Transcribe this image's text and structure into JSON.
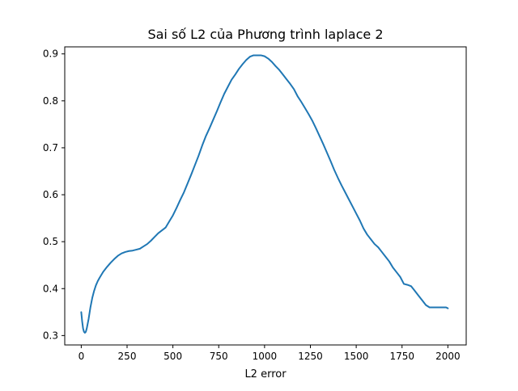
{
  "chart_data": {
    "type": "line",
    "title": "Sai số L2 của Phương trình laplace 2",
    "xlabel": "L2 error",
    "ylabel": "",
    "xlim": [
      -90,
      2100
    ],
    "ylim": [
      0.28,
      0.915
    ],
    "xticks": [
      0,
      250,
      500,
      750,
      1000,
      1250,
      1500,
      1750,
      2000
    ],
    "yticks": [
      0.3,
      0.4,
      0.5,
      0.6,
      0.7,
      0.8,
      0.9
    ],
    "xtick_labels": [
      "0",
      "250",
      "500",
      "750",
      "1000",
      "1250",
      "1500",
      "1750",
      "2000"
    ],
    "ytick_labels": [
      "0.3",
      "0.4",
      "0.5",
      "0.6",
      "0.7",
      "0.8",
      "0.9"
    ],
    "grid": false,
    "series": [
      {
        "color": "#1f77b4",
        "x": [
          0,
          5,
          10,
          15,
          20,
          25,
          30,
          40,
          50,
          60,
          70,
          80,
          90,
          100,
          120,
          140,
          160,
          180,
          200,
          220,
          240,
          260,
          280,
          300,
          320,
          340,
          360,
          380,
          400,
          420,
          440,
          460,
          480,
          500,
          520,
          540,
          560,
          580,
          600,
          620,
          640,
          660,
          680,
          700,
          720,
          740,
          760,
          780,
          800,
          820,
          840,
          860,
          880,
          900,
          920,
          940,
          960,
          980,
          1000,
          1020,
          1040,
          1060,
          1080,
          1100,
          1120,
          1140,
          1160,
          1180,
          1200,
          1220,
          1240,
          1260,
          1280,
          1300,
          1320,
          1340,
          1360,
          1380,
          1400,
          1420,
          1440,
          1460,
          1480,
          1500,
          1520,
          1540,
          1560,
          1580,
          1600,
          1620,
          1640,
          1660,
          1680,
          1700,
          1720,
          1740,
          1760,
          1780,
          1800,
          1820,
          1840,
          1860,
          1880,
          1900,
          1920,
          1940,
          1960,
          1980,
          1990,
          2000
        ],
        "y": [
          0.35,
          0.33,
          0.315,
          0.308,
          0.306,
          0.308,
          0.315,
          0.335,
          0.36,
          0.38,
          0.395,
          0.407,
          0.416,
          0.423,
          0.436,
          0.446,
          0.455,
          0.463,
          0.47,
          0.475,
          0.478,
          0.48,
          0.481,
          0.483,
          0.485,
          0.49,
          0.495,
          0.502,
          0.51,
          0.518,
          0.524,
          0.53,
          0.543,
          0.556,
          0.572,
          0.589,
          0.605,
          0.624,
          0.643,
          0.663,
          0.683,
          0.705,
          0.725,
          0.742,
          0.76,
          0.778,
          0.797,
          0.815,
          0.83,
          0.845,
          0.856,
          0.868,
          0.878,
          0.887,
          0.894,
          0.897,
          0.897,
          0.897,
          0.895,
          0.89,
          0.883,
          0.874,
          0.866,
          0.856,
          0.846,
          0.836,
          0.825,
          0.81,
          0.798,
          0.785,
          0.772,
          0.758,
          0.742,
          0.725,
          0.708,
          0.69,
          0.672,
          0.653,
          0.636,
          0.62,
          0.605,
          0.59,
          0.575,
          0.56,
          0.545,
          0.528,
          0.515,
          0.505,
          0.495,
          0.488,
          0.478,
          0.468,
          0.458,
          0.445,
          0.435,
          0.425,
          0.41,
          0.408,
          0.405,
          0.395,
          0.385,
          0.375,
          0.365,
          0.36,
          0.36,
          0.36,
          0.36,
          0.36,
          0.36,
          0.358
        ]
      }
    ]
  }
}
